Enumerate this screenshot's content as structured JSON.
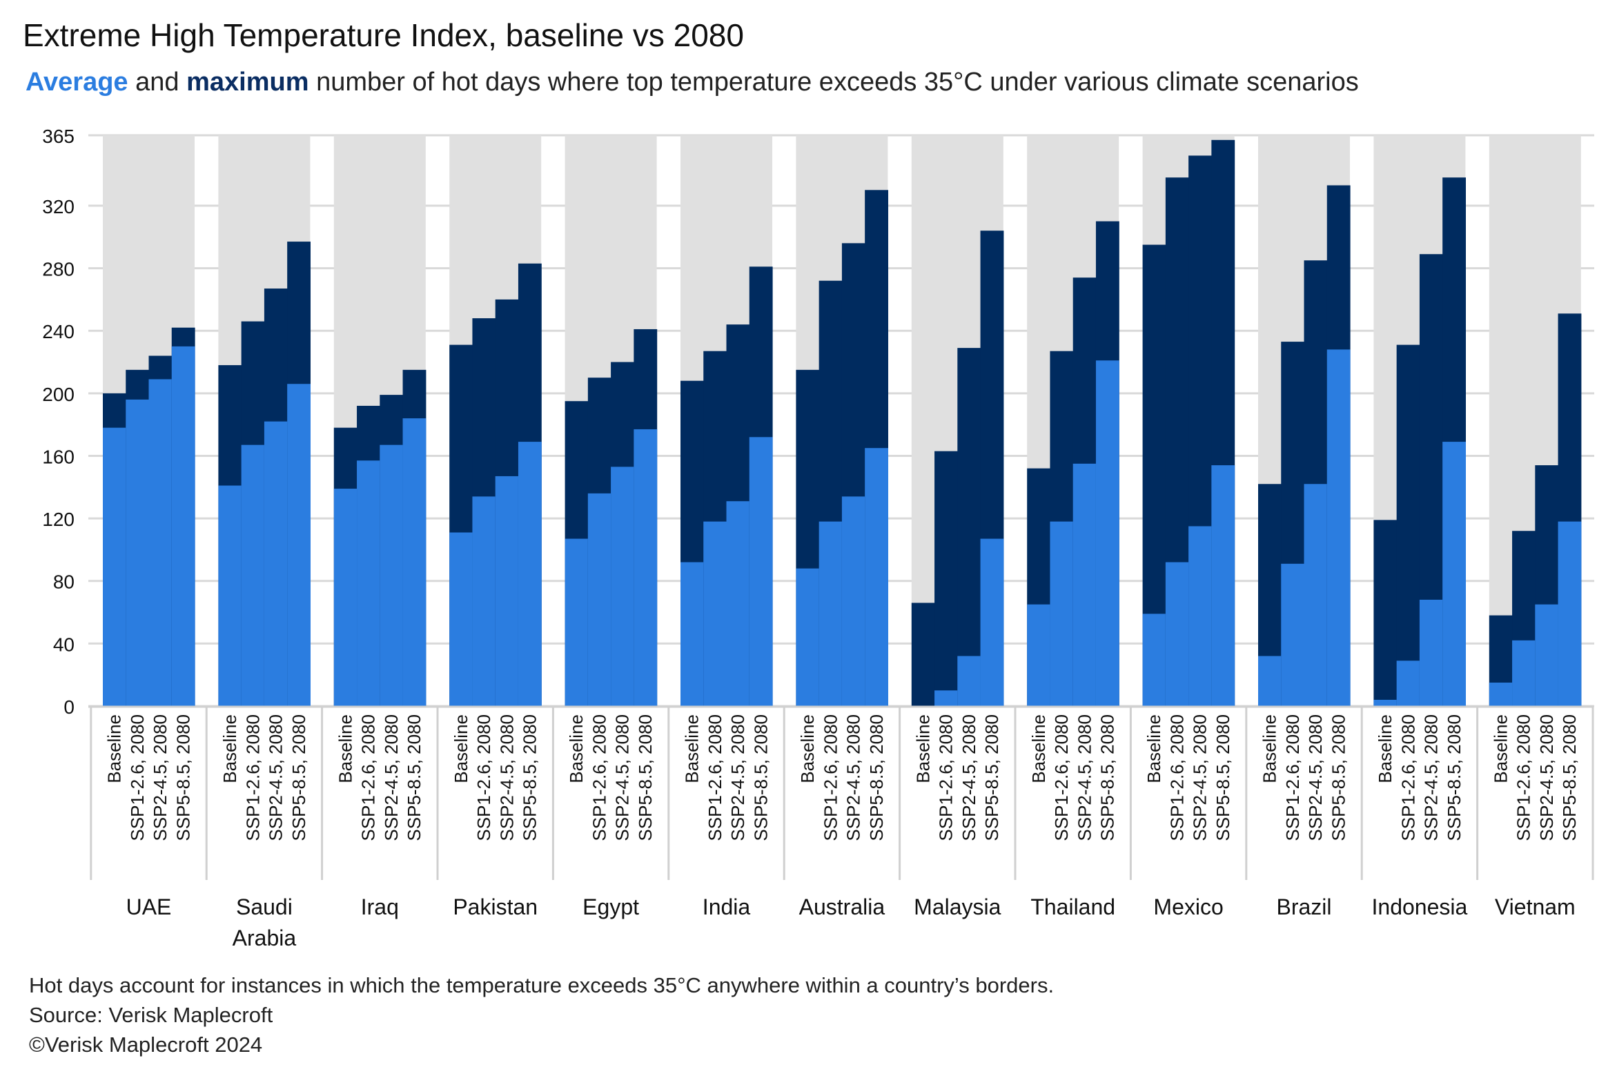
{
  "title": "Extreme High Temperature Index, baseline vs 2080",
  "subtitle": {
    "part1": "Average",
    "part2": " and ",
    "part3": "maximum",
    "part4": " number of hot days where top temperature exceeds 35°C under various climate scenarios"
  },
  "colors": {
    "average": "#2b7de0",
    "maximum": "#002b5f",
    "background": "#e0e0e0"
  },
  "chart_data": {
    "type": "bar",
    "subtype": "overlapping stacked step bars",
    "ylim": [
      0,
      365
    ],
    "y_ticks": [
      "0",
      "40",
      "80",
      "120",
      "160",
      "200",
      "240",
      "280",
      "320",
      "365"
    ],
    "grid": true,
    "scenarios": [
      "Baseline",
      "SSP1-2.6, 2080",
      "SSP2-4.5, 2080",
      "SSP5-8.5, 2080"
    ],
    "categories": [
      "UAE",
      "Saudi Arabia",
      "Iraq",
      "Pakistan",
      "Egypt",
      "India",
      "Australia",
      "Malaysia",
      "Thailand",
      "Mexico",
      "Brazil",
      "Indonesia",
      "Vietnam"
    ],
    "series": [
      {
        "name": "Average",
        "values": [
          [
            178,
            196,
            209,
            230
          ],
          [
            141,
            167,
            182,
            206
          ],
          [
            139,
            157,
            167,
            184
          ],
          [
            111,
            134,
            147,
            169
          ],
          [
            107,
            136,
            153,
            177
          ],
          [
            92,
            118,
            131,
            172
          ],
          [
            88,
            118,
            134,
            165
          ],
          [
            0,
            10,
            32,
            107
          ],
          [
            65,
            118,
            155,
            221
          ],
          [
            59,
            92,
            115,
            154
          ],
          [
            32,
            91,
            142,
            228
          ],
          [
            4,
            29,
            68,
            169
          ],
          [
            15,
            42,
            65,
            118
          ]
        ]
      },
      {
        "name": "Maximum",
        "values": [
          [
            200,
            215,
            224,
            242
          ],
          [
            218,
            246,
            267,
            297
          ],
          [
            178,
            192,
            199,
            215
          ],
          [
            231,
            248,
            260,
            283
          ],
          [
            195,
            210,
            220,
            241
          ],
          [
            208,
            227,
            244,
            281
          ],
          [
            215,
            272,
            296,
            330
          ],
          [
            66,
            163,
            229,
            304
          ],
          [
            152,
            227,
            274,
            310
          ],
          [
            295,
            338,
            352,
            362
          ],
          [
            142,
            233,
            285,
            333
          ],
          [
            119,
            231,
            289,
            338
          ],
          [
            58,
            112,
            154,
            251
          ]
        ]
      }
    ]
  },
  "footnotes": [
    "Hot days account for instances in which the temperature exceeds 35°C anywhere within a country’s borders.",
    "Source: Verisk Maplecroft",
    "©Verisk Maplecroft 2024"
  ]
}
